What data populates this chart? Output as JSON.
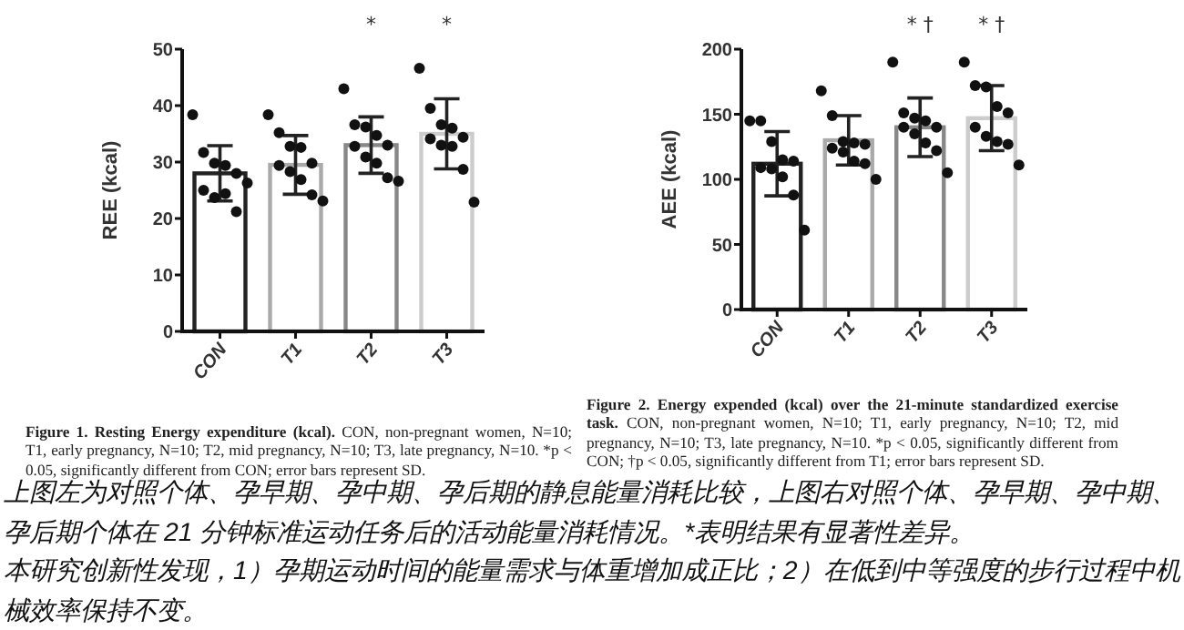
{
  "chart_data": [
    {
      "type": "bar",
      "ylabel": "REE (kcal)",
      "categories": [
        "CON",
        "T1",
        "T2",
        "T3"
      ],
      "ylim": [
        0,
        50
      ],
      "yticks": [
        0,
        10,
        20,
        30,
        40,
        50
      ],
      "grid": false,
      "series": [
        {
          "type": "bar",
          "colors": [
            "#222222",
            "#aaaaaa",
            "#888888",
            "#cccccc"
          ],
          "values": [
            28,
            29.5,
            33,
            35
          ],
          "errors": [
            4.9,
            5.2,
            5,
            6.2
          ]
        },
        {
          "type": "scatter",
          "color": "#111111",
          "marker": "circle",
          "x": [
            "CON",
            "CON",
            "CON",
            "CON",
            "CON",
            "CON",
            "CON",
            "CON",
            "CON",
            "CON",
            "T1",
            "T1",
            "T1",
            "T1",
            "T1",
            "T1",
            "T1",
            "T1",
            "T1",
            "T1",
            "T2",
            "T2",
            "T2",
            "T2",
            "T2",
            "T2",
            "T2",
            "T2",
            "T2",
            "T2",
            "T3",
            "T3",
            "T3",
            "T3",
            "T3",
            "T3",
            "T3",
            "T3",
            "T3",
            "T3"
          ],
          "values": [
            38.4,
            31.7,
            29.8,
            29.4,
            28,
            25,
            23.7,
            24.4,
            21.2,
            26.3,
            38.4,
            35.2,
            32.8,
            32.6,
            29.8,
            29.4,
            28.3,
            26.9,
            24.2,
            23.1,
            43,
            36.6,
            36.2,
            34.7,
            33,
            32.8,
            30.9,
            29.8,
            27.2,
            26.6,
            46.6,
            39.5,
            36.6,
            36,
            34.4,
            34.1,
            33,
            32.8,
            28.7,
            22.9
          ]
        }
      ],
      "annotations": [
        "*",
        "*",
        "**Figure 1. Resting Energy expenditure (kcal).** CON, non-pregnant women, N=10; T1, early pregnancy, N=10; T2, mid pregnancy, N=10; T3, late pregnancy, N=10. *p < 0.05, significantly different from CON; error bars represent SD."
      ]
    },
    {
      "type": "bar",
      "ylabel": "AEE (kcal)",
      "categories": [
        "CON",
        "T1",
        "T2",
        "T3"
      ],
      "ylim": [
        0,
        200
      ],
      "yticks": [
        0,
        50,
        100,
        150,
        200
      ],
      "grid": false,
      "series": [
        {
          "type": "bar",
          "colors": [
            "#222222",
            "#aaaaaa",
            "#888888",
            "#cccccc"
          ],
          "values": [
            112,
            130,
            140,
            147
          ],
          "errors": [
            24.7,
            19,
            22.5,
            25
          ]
        },
        {
          "type": "scatter",
          "color": "#111111",
          "marker": "circle",
          "x": [
            "CON",
            "CON",
            "CON",
            "CON",
            "CON",
            "CON",
            "CON",
            "CON",
            "CON",
            "CON",
            "T1",
            "T1",
            "T1",
            "T1",
            "T1",
            "T1",
            "T1",
            "T1",
            "T1",
            "T1",
            "T2",
            "T2",
            "T2",
            "T2",
            "T2",
            "T2",
            "T2",
            "T2",
            "T2",
            "T2",
            "T3",
            "T3",
            "T3",
            "T3",
            "T3",
            "T3",
            "T3",
            "T3",
            "T3",
            "T3"
          ],
          "values": [
            145,
            145,
            129,
            115,
            114,
            109,
            108,
            102,
            88,
            61,
            168,
            149,
            129,
            128,
            127,
            124,
            121,
            114,
            112,
            100,
            190,
            151,
            147,
            145,
            140,
            140,
            135,
            128,
            122,
            105,
            190,
            172,
            171,
            156,
            151,
            140,
            133,
            129,
            127,
            111
          ]
        }
      ],
      "annotations": [
        "* †",
        "* †",
        "**Figure 2. Energy expended (kcal) over the 21-minute standardized exercise task.** CON, non-pregnant women, N=10; T1, early pregnancy, N=10; T2, mid pregnancy, N=10; T3, late pregnancy, N=10. *p < 0.05, significantly different from CON; †p < 0.05, significantly different from T1; error bars represent SD."
      ]
    },
    {
      "type": "other",
      "annotations": [
        "上图左为对照个体、孕早期、孕中期、孕后期的静息能量消耗比较，上图右对照个体、孕早期、孕中期、孕后期个体在 21 分钟标准运动任务后的活动能量消耗情况。*表明结果有显著性差异。",
        "本研究创新性发现，1）孕期运动时间的能量需求与体重增加成正比；2）在低到中等强度的步行过程中机械效率保持不变。"
      ]
    }
  ]
}
